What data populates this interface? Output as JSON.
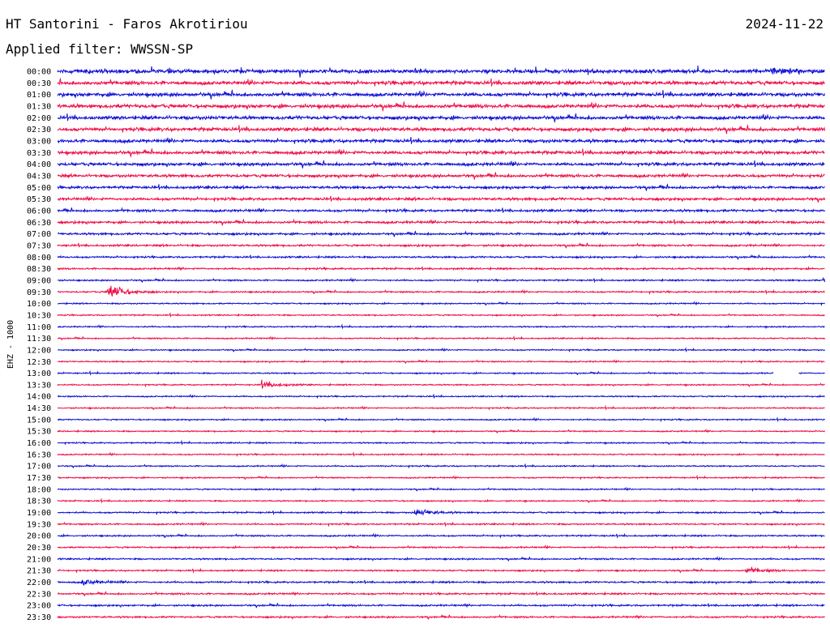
{
  "header": {
    "station_title": "HT Santorini - Faros Akrotiriou",
    "date": "2024-11-22",
    "filter_text": "Applied filter: WWSSN-SP"
  },
  "colors": {
    "even_trace": "#1010d8",
    "odd_trace": "#f0104a",
    "background": "#ffffff"
  },
  "chart_data": {
    "type": "line",
    "title": "HT Santorini - Faros Akrotiriou",
    "ylabel": "EHZ - 1000",
    "xlabel": "",
    "grid": false,
    "rows": [
      "00:00",
      "00:30",
      "01:00",
      "01:30",
      "02:00",
      "02:30",
      "03:00",
      "03:30",
      "04:00",
      "04:30",
      "05:00",
      "05:30",
      "06:00",
      "06:30",
      "07:00",
      "07:30",
      "08:00",
      "08:30",
      "09:00",
      "09:30",
      "10:00",
      "10:30",
      "11:00",
      "11:30",
      "12:00",
      "12:30",
      "13:00",
      "13:30",
      "14:00",
      "14:30",
      "15:00",
      "15:30",
      "16:00",
      "16:30",
      "17:00",
      "17:30",
      "18:00",
      "18:30",
      "19:00",
      "19:30",
      "20:00",
      "20:30",
      "21:00",
      "21:30",
      "22:00",
      "22:30",
      "23:00",
      "23:30"
    ],
    "noise_level": [
      0.9,
      0.85,
      0.85,
      0.85,
      0.8,
      0.8,
      0.75,
      0.75,
      0.7,
      0.65,
      0.6,
      0.6,
      0.55,
      0.55,
      0.5,
      0.45,
      0.4,
      0.4,
      0.35,
      0.35,
      0.3,
      0.3,
      0.3,
      0.3,
      0.3,
      0.3,
      0.3,
      0.3,
      0.3,
      0.3,
      0.3,
      0.3,
      0.3,
      0.3,
      0.3,
      0.3,
      0.3,
      0.3,
      0.35,
      0.35,
      0.35,
      0.35,
      0.35,
      0.35,
      0.4,
      0.4,
      0.4,
      0.4
    ],
    "events": [
      {
        "row": "09:30",
        "minute": 2,
        "amplitude": 9
      },
      {
        "row": "13:30",
        "minute": 8,
        "amplitude": 4
      },
      {
        "row": "19:00",
        "minute": 14,
        "amplitude": 4
      },
      {
        "row": "21:30",
        "minute": 27,
        "amplitude": 3
      },
      {
        "row": "00:00",
        "minute": 28,
        "amplitude": 4
      },
      {
        "row": "09:00",
        "minute": 30,
        "amplitude": 3
      },
      {
        "row": "22:00",
        "minute": 1,
        "amplitude": 3
      }
    ],
    "gaps": [
      {
        "row": "13:00",
        "start_minute": 28,
        "end_minute": 29
      }
    ]
  }
}
